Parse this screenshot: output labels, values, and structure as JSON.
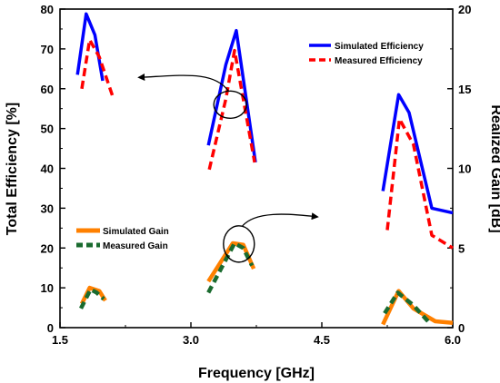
{
  "chart_data": {
    "type": "line",
    "xlabel": "Frequency [GHz]",
    "ylabel_left": "Total Efficiency [%]",
    "ylabel_right": "Realized Gain [dB]",
    "xlim": [
      1.5,
      6.0
    ],
    "ylim_left": [
      0,
      80
    ],
    "ylim_right": [
      0,
      20
    ],
    "x_ticks": [
      "1.5",
      "3.0",
      "4.5",
      "6.0"
    ],
    "y_left_ticks": [
      "0",
      "10",
      "20",
      "30",
      "40",
      "50",
      "60",
      "70",
      "80"
    ],
    "y_right_ticks": [
      "0",
      "5",
      "10",
      "15",
      "20"
    ],
    "grid": false,
    "series": [
      {
        "name": "Simulated Efficiency",
        "axis": "left",
        "color": "#0000ff",
        "dash": "solid",
        "segments": [
          [
            [
              1.7,
              63.5
            ],
            [
              1.8,
              78.8
            ],
            [
              1.9,
              73.5
            ],
            [
              1.99,
              62
            ]
          ],
          [
            [
              3.2,
              45.8
            ],
            [
              3.4,
              66
            ],
            [
              3.52,
              74.6
            ],
            [
              3.74,
              41.5
            ]
          ],
          [
            [
              5.2,
              34.3
            ],
            [
              5.38,
              58.5
            ],
            [
              5.5,
              54
            ],
            [
              5.76,
              30
            ],
            [
              6.0,
              28.8
            ]
          ]
        ]
      },
      {
        "name": "Measured Efficiency",
        "axis": "left",
        "color": "#ff0000",
        "dash": "dashed",
        "segments": [
          [
            [
              1.75,
              60
            ],
            [
              1.84,
              72.3
            ],
            [
              1.95,
              68
            ],
            [
              2.1,
              58.3
            ]
          ],
          [
            [
              3.21,
              39.7
            ],
            [
              3.4,
              57.4
            ],
            [
              3.5,
              69.6
            ],
            [
              3.73,
              41.5
            ]
          ],
          [
            [
              5.25,
              24.5
            ],
            [
              5.39,
              52.4
            ],
            [
              5.55,
              46
            ],
            [
              5.76,
              23.2
            ],
            [
              6.0,
              20
            ]
          ]
        ]
      },
      {
        "name": "Simulated Gain",
        "axis": "right",
        "color": "#ff8000",
        "dash": "solid",
        "segments": [
          [
            [
              1.75,
              1.5
            ],
            [
              1.84,
              2.5
            ],
            [
              1.95,
              2.3
            ],
            [
              2.02,
              1.7
            ]
          ],
          [
            [
              3.2,
              2.9
            ],
            [
              3.48,
              5.3
            ],
            [
              3.6,
              5.2
            ],
            [
              3.72,
              3.7
            ]
          ],
          [
            [
              5.2,
              0.2
            ],
            [
              5.38,
              2.3
            ],
            [
              5.55,
              1.2
            ],
            [
              5.8,
              0.4
            ],
            [
              6.0,
              0.3
            ]
          ]
        ]
      },
      {
        "name": "Measured Gain",
        "axis": "right",
        "color": "#1a6b2f",
        "dash": "dashed",
        "segments": [
          [
            [
              1.74,
              1.2
            ],
            [
              1.85,
              2.4
            ],
            [
              1.92,
              2.2
            ],
            [
              2.0,
              1.8
            ]
          ],
          [
            [
              3.2,
              2.2
            ],
            [
              3.5,
              5.3
            ],
            [
              3.6,
              5.0
            ],
            [
              3.7,
              3.9
            ]
          ],
          [
            [
              5.22,
              0.9
            ],
            [
              5.37,
              2.2
            ],
            [
              5.55,
              1.4
            ],
            [
              5.75,
              0.2
            ]
          ]
        ]
      }
    ],
    "legends": [
      {
        "position": "top-right",
        "entries": [
          "Simulated Efficiency",
          "Measured Efficiency"
        ]
      },
      {
        "position": "left-middle",
        "entries": [
          "Simulated Gain",
          "Measured Gain"
        ]
      }
    ],
    "annotations": [
      {
        "type": "ellipse-arrow",
        "circled_x": 3.45,
        "circled_y_left": 56,
        "points_to": "left axis"
      },
      {
        "type": "ellipse-arrow",
        "circled_x": 3.55,
        "circled_y_left": 21,
        "points_to": "right axis"
      }
    ]
  }
}
